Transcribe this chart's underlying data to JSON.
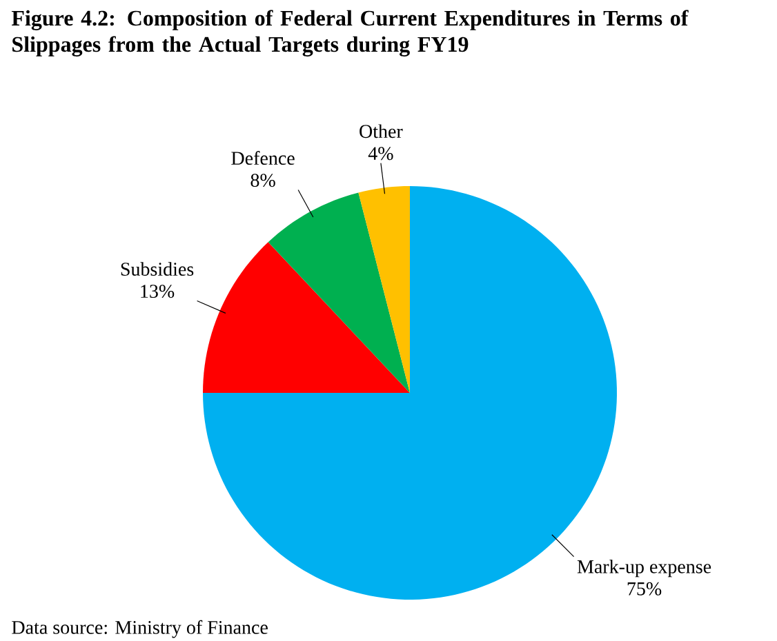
{
  "chart_data": {
    "type": "pie",
    "title": "Figure 4.2: Composition of Federal Current Expenditures in Terms of Slippages from the Actual Targets during FY19",
    "categories": [
      "Mark-up expense",
      "Subsidies",
      "Defence",
      "Other"
    ],
    "values": [
      75,
      13,
      8,
      4
    ],
    "value_labels": [
      "75%",
      "13%",
      "8%",
      "4%"
    ],
    "colors": [
      "#00b0f0",
      "#ff0000",
      "#00b050",
      "#ffc000"
    ],
    "annotations": [
      "Data source: Ministry of Finance"
    ]
  }
}
